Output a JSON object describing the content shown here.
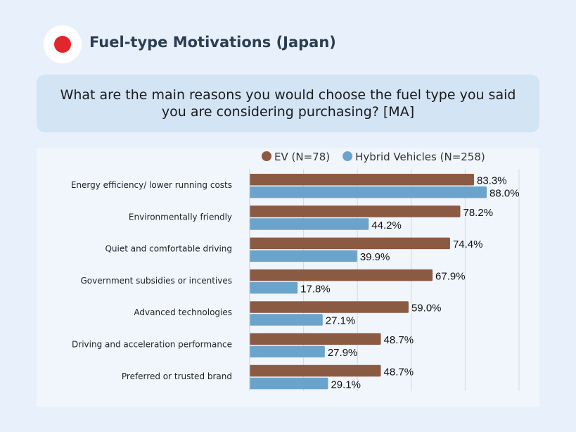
{
  "header": {
    "title": "Fuel-type Motivations (Japan)",
    "flag_icon": "japan-flag-icon"
  },
  "question": "What are the main reasons you would choose the fuel type you said you are considering purchasing? [MA]",
  "chart_data": {
    "type": "bar",
    "orientation": "horizontal",
    "legend_position": "top",
    "categories": [
      "Energy efficiency/ lower running costs",
      "Environmentally friendly",
      "Quiet and comfortable driving",
      "Government subsidies or incentives",
      "Advanced technologies",
      "Driving and acceleration performance",
      "Preferred or trusted brand"
    ],
    "series": [
      {
        "name": "EV (N=78)",
        "color": "#8b5a43",
        "values": [
          83.3,
          78.2,
          74.4,
          67.9,
          59.0,
          48.7,
          48.7
        ]
      },
      {
        "name": "Hybrid Vehicles (N=258)",
        "color": "#6aa4cc",
        "values": [
          88.0,
          44.2,
          39.9,
          17.8,
          27.1,
          27.9,
          29.1
        ]
      }
    ],
    "xlim": [
      0,
      100
    ],
    "grid": true,
    "value_format": "%"
  }
}
